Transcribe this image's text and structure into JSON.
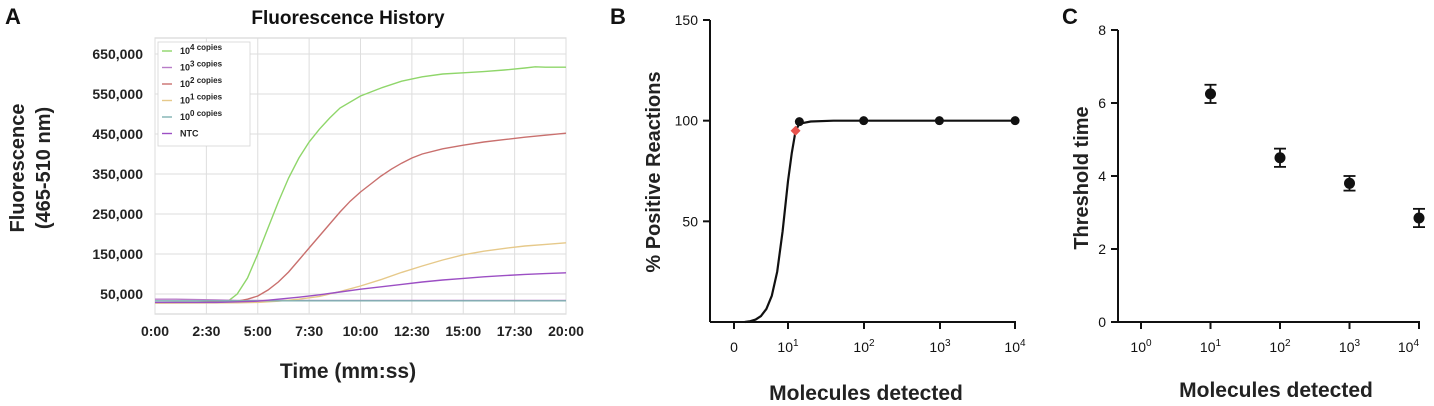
{
  "chart_data": [
    {
      "panel": "A",
      "type": "line",
      "title": "Fluorescence History",
      "xlabel": "Time (mm:ss)",
      "ylabel_line1": "Fluorescence",
      "ylabel_line2": "(465-510 nm)",
      "x_ticks": [
        "0:00",
        "2:30",
        "5:00",
        "7:30",
        "10:00",
        "12:30",
        "15:00",
        "17:30",
        "20:00"
      ],
      "y_ticks": [
        "50,000",
        "150,000",
        "250,000",
        "350,000",
        "450,000",
        "550,000",
        "650,000"
      ],
      "y_tick_values": [
        50000,
        150000,
        250000,
        350000,
        450000,
        550000,
        650000
      ],
      "xlim": [
        0,
        20
      ],
      "ylim": [
        0,
        690000
      ],
      "grid": true,
      "legend_position": "top-left",
      "series": [
        {
          "name": "10",
          "exp": "4",
          "suffix": " copies",
          "color": "#8fd66a",
          "points": [
            [
              0,
              28000
            ],
            [
              1,
              29000
            ],
            [
              2,
              29000
            ],
            [
              3,
              30000
            ],
            [
              3.6,
              34000
            ],
            [
              4,
              50000
            ],
            [
              4.5,
              90000
            ],
            [
              5,
              150000
            ],
            [
              5.5,
              215000
            ],
            [
              6,
              280000
            ],
            [
              6.5,
              340000
            ],
            [
              7,
              390000
            ],
            [
              7.5,
              430000
            ],
            [
              8,
              462000
            ],
            [
              8.5,
              490000
            ],
            [
              9,
              515000
            ],
            [
              10,
              545000
            ],
            [
              11,
              565000
            ],
            [
              12,
              582000
            ],
            [
              13,
              593000
            ],
            [
              14,
              600000
            ],
            [
              15,
              603000
            ],
            [
              16,
              606000
            ],
            [
              17,
              610000
            ],
            [
              18,
              615000
            ],
            [
              18.5,
              618000
            ],
            [
              19,
              617000
            ],
            [
              20,
              617000
            ]
          ]
        },
        {
          "name": "10",
          "exp": "3",
          "suffix": " copies",
          "color": "#b87cc8",
          "points": [
            [
              0,
              37000
            ],
            [
              1,
              37000
            ],
            [
              2,
              36000
            ],
            [
              3,
              35000
            ],
            [
              4,
              34000
            ],
            [
              5,
              34000
            ],
            [
              6,
              34000
            ],
            [
              8,
              34000
            ],
            [
              10,
              34000
            ],
            [
              12,
              34000
            ],
            [
              14,
              34000
            ],
            [
              16,
              34000
            ],
            [
              18,
              34000
            ],
            [
              20,
              34000
            ]
          ]
        },
        {
          "name": "10",
          "exp": "2",
          "suffix": " copies",
          "color": "#c9706e",
          "points": [
            [
              0,
              28000
            ],
            [
              2,
              28000
            ],
            [
              3,
              30000
            ],
            [
              4,
              32000
            ],
            [
              4.5,
              37000
            ],
            [
              5,
              45000
            ],
            [
              5.5,
              60000
            ],
            [
              6,
              80000
            ],
            [
              6.5,
              105000
            ],
            [
              7,
              135000
            ],
            [
              7.5,
              165000
            ],
            [
              8,
              195000
            ],
            [
              8.5,
              225000
            ],
            [
              9,
              255000
            ],
            [
              9.5,
              282000
            ],
            [
              10,
              305000
            ],
            [
              10.5,
              325000
            ],
            [
              11,
              345000
            ],
            [
              11.5,
              362000
            ],
            [
              12,
              377000
            ],
            [
              12.5,
              390000
            ],
            [
              13,
              400000
            ],
            [
              14,
              413000
            ],
            [
              15,
              422000
            ],
            [
              16,
              430000
            ],
            [
              17,
              436000
            ],
            [
              18,
              442000
            ],
            [
              19,
              447000
            ],
            [
              20,
              452000
            ]
          ]
        },
        {
          "name": "10",
          "exp": "1",
          "suffix": " copies",
          "color": "#e6c98a",
          "points": [
            [
              0,
              27000
            ],
            [
              4,
              28000
            ],
            [
              5,
              29000
            ],
            [
              6,
              32000
            ],
            [
              7,
              37000
            ],
            [
              8,
              44000
            ],
            [
              9,
              56000
            ],
            [
              10,
              70000
            ],
            [
              11,
              86000
            ],
            [
              12,
              104000
            ],
            [
              13,
              120000
            ],
            [
              14,
              135000
            ],
            [
              15,
              148000
            ],
            [
              16,
              157000
            ],
            [
              17,
              164000
            ],
            [
              18,
              170000
            ],
            [
              19,
              174000
            ],
            [
              20,
              178000
            ]
          ]
        },
        {
          "name": "10",
          "exp": "0",
          "suffix": " copies",
          "color": "#7fb2b2",
          "points": [
            [
              0,
              33000
            ],
            [
              5,
              33000
            ],
            [
              10,
              33000
            ],
            [
              15,
              33000
            ],
            [
              20,
              33000
            ]
          ]
        },
        {
          "name": "NTC",
          "exp": "",
          "suffix": "",
          "color": "#9c4fc4",
          "points": [
            [
              0,
              29000
            ],
            [
              3,
              29000
            ],
            [
              5,
              32000
            ],
            [
              7,
              42000
            ],
            [
              8,
              48000
            ],
            [
              9,
              55000
            ],
            [
              10,
              62000
            ],
            [
              11,
              68000
            ],
            [
              12,
              74000
            ],
            [
              13,
              80000
            ],
            [
              14,
              85000
            ],
            [
              15,
              89000
            ],
            [
              16,
              93000
            ],
            [
              17,
              96000
            ],
            [
              18,
              99000
            ],
            [
              19,
              101000
            ],
            [
              20,
              103000
            ]
          ]
        }
      ]
    },
    {
      "panel": "B",
      "type": "scatter",
      "xlabel": "Molecules detected",
      "ylabel": "% Positive Reactions",
      "x_ticks": [
        {
          "base": "0",
          "exp": ""
        },
        {
          "base": "10",
          "exp": "1"
        },
        {
          "base": "10",
          "exp": "2"
        },
        {
          "base": "10",
          "exp": "3"
        },
        {
          "base": "10",
          "exp": "4"
        }
      ],
      "y_ticks": [
        {
          "label": "50",
          "value": 50
        },
        {
          "label": "100",
          "value": 100
        },
        {
          "label": "150",
          "value": 150
        }
      ],
      "ylim": [
        0,
        150
      ],
      "points": [
        {
          "x_log10": 1.15,
          "y": 99.5
        },
        {
          "x_log10": 2,
          "y": 100
        },
        {
          "x_log10": 3,
          "y": 100
        },
        {
          "x_log10": 4,
          "y": 100
        }
      ],
      "lod_marker": {
        "x_log10": 1.1,
        "y": 95,
        "color": "#e8534d"
      },
      "fit_curve": [
        [
          0.2,
          0
        ],
        [
          0.3,
          0.4
        ],
        [
          0.4,
          1.2
        ],
        [
          0.5,
          3
        ],
        [
          0.6,
          6.5
        ],
        [
          0.7,
          13
        ],
        [
          0.8,
          25
        ],
        [
          0.9,
          45
        ],
        [
          1.0,
          70
        ],
        [
          1.05,
          84
        ],
        [
          1.1,
          95
        ],
        [
          1.15,
          98.5
        ],
        [
          1.3,
          99.6
        ],
        [
          1.6,
          100
        ],
        [
          2,
          100
        ],
        [
          3,
          100
        ],
        [
          4,
          100
        ]
      ]
    },
    {
      "panel": "C",
      "type": "scatter",
      "xlabel": "Molecules detected",
      "ylabel": "Threshold time",
      "x_ticks": [
        {
          "base": "10",
          "exp": "0"
        },
        {
          "base": "10",
          "exp": "1"
        },
        {
          "base": "10",
          "exp": "2"
        },
        {
          "base": "10",
          "exp": "3"
        },
        {
          "base": "10",
          "exp": "4"
        }
      ],
      "y_ticks": [
        {
          "label": "0",
          "value": 0
        },
        {
          "label": "2",
          "value": 2
        },
        {
          "label": "4",
          "value": 4
        },
        {
          "label": "6",
          "value": 6
        },
        {
          "label": "8",
          "value": 8
        }
      ],
      "ylim": [
        0,
        8
      ],
      "points": [
        {
          "x_log10": 1,
          "y": 6.25,
          "err": 0.25
        },
        {
          "x_log10": 2,
          "y": 4.5,
          "err": 0.25
        },
        {
          "x_log10": 3,
          "y": 3.8,
          "err": 0.2
        },
        {
          "x_log10": 4,
          "y": 2.85,
          "err": 0.25
        }
      ]
    }
  ]
}
